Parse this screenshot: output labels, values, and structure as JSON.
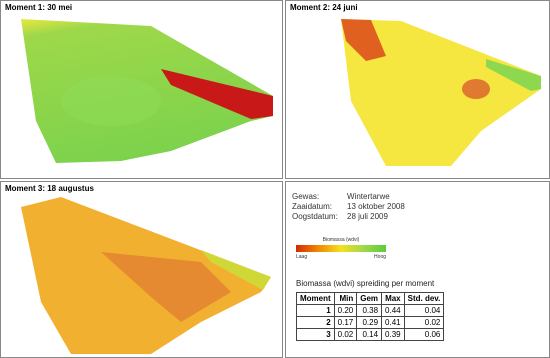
{
  "panels": [
    {
      "title": "Moment 1: 30 mei"
    },
    {
      "title": "Moment 2: 24 juni"
    },
    {
      "title": "Moment 3: 18 augustus"
    }
  ],
  "info": {
    "rows": [
      [
        "Gewas:",
        "Wintertarwe"
      ],
      [
        "Zaaidatum:",
        "13 oktober 2008"
      ],
      [
        "Oogstdatum:",
        "28 juli 2009"
      ]
    ]
  },
  "legend": {
    "title": "Biomassa (wdvi)",
    "low": "Laag",
    "high": "Hoog"
  },
  "table": {
    "title": "Biomassa (wdvi) spreiding per moment",
    "header": [
      "Moment",
      "Min",
      "Gem",
      "Max",
      "Std. dev."
    ],
    "rows": [
      [
        "1",
        "0.20",
        "0.38",
        "0.44",
        "0.04"
      ],
      [
        "2",
        "0.17",
        "0.29",
        "0.41",
        "0.02"
      ],
      [
        "3",
        "0.02",
        "0.14",
        "0.39",
        "0.06"
      ]
    ]
  }
}
